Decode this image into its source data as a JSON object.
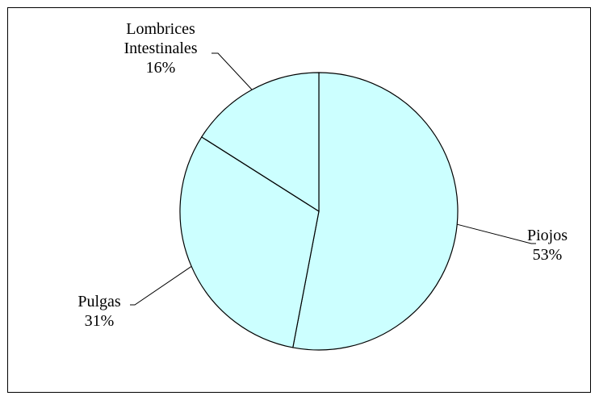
{
  "chart_data": {
    "type": "pie",
    "slices": [
      {
        "label_lines": [
          "Piojos"
        ],
        "percent_label": "53%",
        "value": 53
      },
      {
        "label_lines": [
          "Pulgas"
        ],
        "percent_label": "31%",
        "value": 31
      },
      {
        "label_lines": [
          "Lombrices",
          "Intestinales"
        ],
        "percent_label": "16%",
        "value": 16
      }
    ],
    "colors": {
      "fill": "#ccffff",
      "stroke": "#000000"
    },
    "legend": "none",
    "title": ""
  }
}
